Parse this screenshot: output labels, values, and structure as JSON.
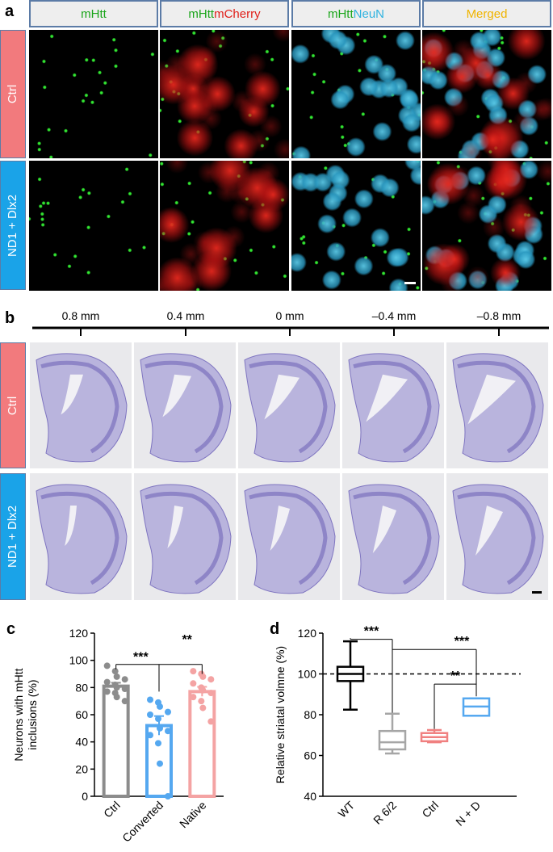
{
  "panel_a": {
    "letter": "a",
    "columns": [
      {
        "parts": [
          {
            "text": "mHtt",
            "color": "#1aa51a"
          }
        ]
      },
      {
        "parts": [
          {
            "text": "mHtt",
            "color": "#1aa51a"
          },
          {
            "text": " mCherry",
            "color": "#e0201a"
          }
        ]
      },
      {
        "parts": [
          {
            "text": "mHtt",
            "color": "#1aa51a"
          },
          {
            "text": " NeuN",
            "color": "#2fb3e0"
          }
        ]
      },
      {
        "parts": [
          {
            "text": "Merged",
            "color": "#f0b400"
          }
        ]
      }
    ],
    "rows": [
      {
        "label": "Ctrl",
        "color": "#f27a7d"
      },
      {
        "label": "ND1 + Dlx2",
        "color": "#1aa3e8"
      }
    ]
  },
  "panel_b": {
    "letter": "b",
    "distances": [
      "0.8 mm",
      "0.4 mm",
      "0 mm",
      "–0.4 mm",
      "–0.8 mm"
    ],
    "rows": [
      {
        "label": "Ctrl",
        "color": "#f27a7d"
      },
      {
        "label": "ND1 + Dlx2",
        "color": "#1aa3e8"
      }
    ]
  },
  "chart_data": [
    {
      "panel": "c",
      "type": "bar",
      "ylabel": "Neurons with mHtt inclusions (%)",
      "ylim": [
        0,
        120
      ],
      "yticks": [
        0,
        20,
        40,
        60,
        80,
        100,
        120
      ],
      "categories": [
        "Ctrl",
        "Converted",
        "Native"
      ],
      "colors": [
        "#8c8c8c",
        "#55a8f0",
        "#f4a3a3"
      ],
      "values": [
        81,
        52,
        77
      ],
      "errors": [
        2.5,
        7,
        3.5
      ],
      "points": [
        [
          96,
          92,
          88,
          86,
          84,
          82,
          80,
          79,
          77,
          76,
          73,
          70
        ],
        [
          71,
          69,
          66,
          62,
          60,
          57,
          50,
          48,
          45,
          39,
          24,
          0
        ],
        [
          92,
          90,
          88,
          86,
          83,
          80,
          78,
          76,
          73,
          70,
          65,
          55
        ]
      ],
      "significance": [
        {
          "pair": [
            0,
            1
          ],
          "label": "***"
        },
        {
          "pair": [
            1,
            2
          ],
          "label": "**"
        }
      ]
    },
    {
      "panel": "d",
      "type": "box",
      "ylabel": "Relative striatal volmne (%)",
      "ylim": [
        40,
        120
      ],
      "yticks": [
        40,
        60,
        80,
        100,
        120
      ],
      "categories": [
        "WT",
        "R 6/2",
        "Ctrl",
        "N + D"
      ],
      "colors": [
        "#000000",
        "#a6a6a6",
        "#f08080",
        "#55a8f0"
      ],
      "boxes": [
        {
          "min": 82.5,
          "q1": 96.5,
          "median": 100,
          "q3": 103.5,
          "max": 116
        },
        {
          "min": 61,
          "q1": 63,
          "median": 66.5,
          "q3": 72,
          "max": 80.5
        },
        {
          "min": 66.5,
          "q1": 67,
          "median": 69,
          "q3": 71,
          "max": 72.5
        },
        {
          "min": 79.5,
          "q1": 79.5,
          "median": 84,
          "q3": 88,
          "max": 88
        }
      ],
      "reference_line": 100,
      "significance": [
        {
          "pair": [
            0,
            1
          ],
          "label": "***"
        },
        {
          "pair": [
            0,
            3
          ],
          "label": "***"
        },
        {
          "pair": [
            2,
            3
          ],
          "label": "**"
        }
      ]
    }
  ]
}
